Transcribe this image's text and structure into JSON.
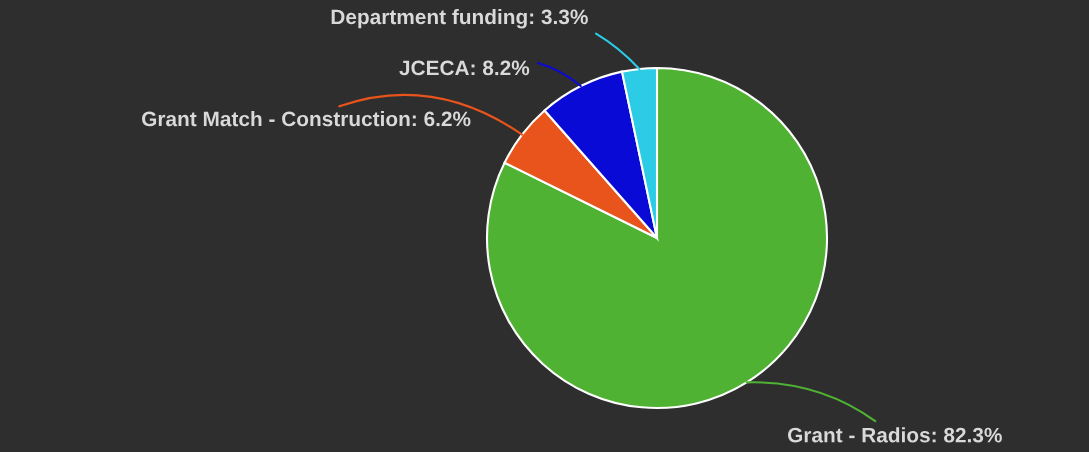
{
  "chart_data": {
    "type": "pie",
    "categories": [
      "Grant - Radios",
      "Grant Match - Construction",
      "JCECA",
      "Department funding"
    ],
    "values": [
      82.3,
      6.2,
      8.2,
      3.3
    ],
    "value_labels": [
      "82.3%",
      "6.2%",
      "8.2%",
      "3.3%"
    ],
    "colors": [
      "#4fb233",
      "#e8541c",
      "#0a0ad6",
      "#2ccbe6"
    ],
    "legend": false
  }
}
